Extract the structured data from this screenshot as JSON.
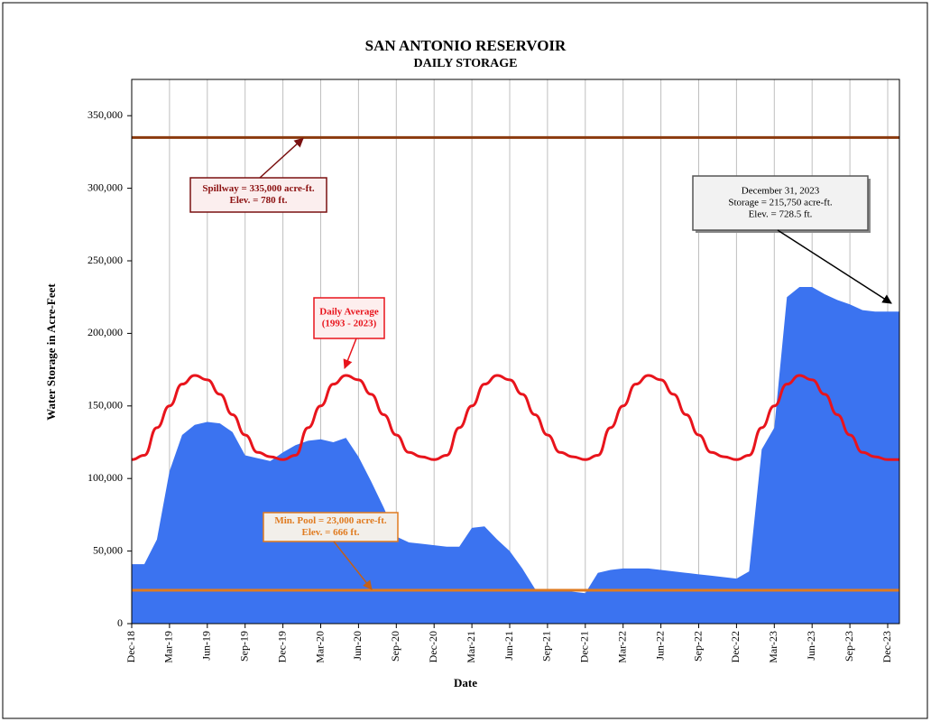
{
  "chart_data": {
    "type": "area",
    "title": "SAN ANTONIO RESERVOIR",
    "subtitle": "DAILY STORAGE",
    "y_label": "Water Storage in Acre-Feet",
    "x_label": "Date",
    "x": [
      "Dec-18",
      "Jan-19",
      "Feb-19",
      "Mar-19",
      "Apr-19",
      "May-19",
      "Jun-19",
      "Jul-19",
      "Aug-19",
      "Sep-19",
      "Oct-19",
      "Nov-19",
      "Dec-19",
      "Jan-20",
      "Feb-20",
      "Mar-20",
      "Apr-20",
      "May-20",
      "Jun-20",
      "Jul-20",
      "Aug-20",
      "Sep-20",
      "Oct-20",
      "Nov-20",
      "Dec-20",
      "Jan-21",
      "Feb-21",
      "Mar-21",
      "Apr-21",
      "May-21",
      "Jun-21",
      "Jul-21",
      "Aug-21",
      "Sep-21",
      "Oct-21",
      "Nov-21",
      "Dec-21",
      "Jan-22",
      "Feb-22",
      "Mar-22",
      "Apr-22",
      "May-22",
      "Jun-22",
      "Jul-22",
      "Aug-22",
      "Sep-22",
      "Oct-22",
      "Nov-22",
      "Dec-22",
      "Jan-23",
      "Feb-23",
      "Mar-23",
      "Apr-23",
      "May-23",
      "Jun-23",
      "Jul-23",
      "Aug-23",
      "Sep-23",
      "Oct-23",
      "Nov-23",
      "Dec-23"
    ],
    "xticks": [
      "Dec-18",
      "Mar-19",
      "Jun-19",
      "Sep-19",
      "Dec-19",
      "Mar-20",
      "Jun-20",
      "Sep-20",
      "Dec-20",
      "Mar-21",
      "Jun-21",
      "Sep-21",
      "Dec-21",
      "Mar-22",
      "Jun-22",
      "Sep-22",
      "Dec-22",
      "Mar-23",
      "Jun-23",
      "Sep-23",
      "Dec-23"
    ],
    "series": [
      {
        "color": "#3b73f0",
        "kind": "area",
        "values": [
          41000,
          41000,
          58000,
          105000,
          130000,
          137000,
          139000,
          138000,
          132000,
          116000,
          114000,
          112000,
          118000,
          123000,
          126000,
          127000,
          125000,
          128000,
          115000,
          98000,
          80000,
          60000,
          56000,
          55000,
          54000,
          53000,
          53000,
          66000,
          67000,
          58000,
          50000,
          38000,
          24000,
          23000,
          23000,
          22000,
          21000,
          35000,
          37000,
          38000,
          38000,
          38000,
          37000,
          36000,
          35000,
          34000,
          33000,
          32000,
          31000,
          36000,
          120000,
          135000,
          225000,
          232000,
          232000,
          227000,
          223000,
          220000,
          216000,
          215000,
          215000
        ]
      },
      {
        "name": "Daily Average",
        "period": "(1993 - 2023)",
        "color": "#e8141c",
        "kind": "line",
        "values": [
          113000,
          116000,
          135000,
          150000,
          165000,
          171000,
          168000,
          158000,
          144000,
          130000,
          118000,
          115000,
          113000,
          116000,
          135000,
          150000,
          165000,
          171000,
          168000,
          158000,
          144000,
          130000,
          118000,
          115000,
          113000,
          116000,
          135000,
          150000,
          165000,
          171000,
          168000,
          158000,
          144000,
          130000,
          118000,
          115000,
          113000,
          116000,
          135000,
          150000,
          165000,
          171000,
          168000,
          158000,
          144000,
          130000,
          118000,
          115000,
          113000,
          116000,
          135000,
          150000,
          165000,
          171000,
          168000,
          158000,
          144000,
          130000,
          118000,
          115000,
          113000
        ]
      }
    ],
    "reference_lines": [
      {
        "value": 335000,
        "color": "#8b3a0e",
        "lines": [
          "Spillway = 335,000 acre-ft.",
          "Elev. = 780 ft."
        ]
      },
      {
        "value": 23000,
        "color": "#e07b20",
        "lines": [
          "Min. Pool = 23,000 acre-ft.",
          "Elev. = 666 ft."
        ]
      }
    ],
    "annotation": {
      "lines": [
        "December 31, 2023",
        "Storage = 215,750 acre-ft.",
        "Elev. = 728.5 ft."
      ]
    },
    "ylim": [
      0,
      375000
    ],
    "yticks": [
      0,
      {
        "value": 50000,
        "label": "50,000"
      },
      {
        "value": 100000,
        "label": "100,000"
      },
      {
        "value": 150000,
        "label": "150,000"
      },
      {
        "value": 200000,
        "label": "200,000"
      },
      {
        "value": 250000,
        "label": "250,000"
      },
      {
        "value": 300000,
        "label": "300,000"
      },
      {
        "value": 350000,
        "label": "350,000"
      }
    ],
    "grid": "x"
  }
}
